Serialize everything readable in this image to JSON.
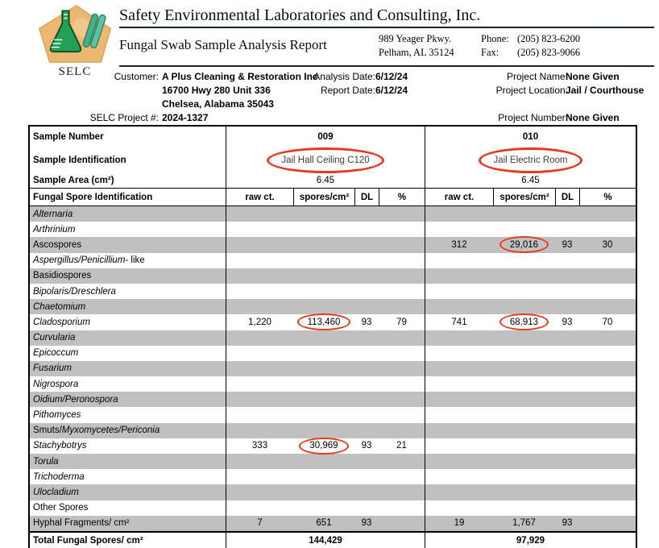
{
  "logo": {
    "text": "SELC"
  },
  "header": {
    "company": "Safety Environmental Laboratories and Consulting, Inc.",
    "report_title": "Fungal Swab Sample Analysis Report",
    "address_line1": "989 Yeager Pkwy.",
    "address_line2": "Pelham, AL 35124",
    "phone_label": "Phone:",
    "phone": "(205) 823-6200",
    "fax_label": "Fax:",
    "fax": "(205) 823-9066"
  },
  "info": {
    "customer_label": "Customer:",
    "customer_name": "A Plus Cleaning & Restoration Inc",
    "customer_addr1": "16700 Hwy 280 Unit 336",
    "customer_addr2": "Chelsea, Alabama 35043",
    "selc_project_label": "SELC Project #:",
    "selc_project": "2024-1327",
    "analysis_date_label": "Analysis Date:",
    "analysis_date": "6/12/24",
    "report_date_label": "Report Date:",
    "report_date": "6/12/24",
    "project_name_label": "Project Name:",
    "project_name": "None Given",
    "project_location_label": "Project Location:",
    "project_location": "Jail / Courthouse",
    "project_number_label": "Project Number:",
    "project_number": "None Given"
  },
  "table": {
    "sample_number_label": "Sample Number",
    "sample_id_label": "Sample Identification",
    "sample_area_label": "Sample Area (cm²)",
    "spore_id_label": "Fungal Spore Identification",
    "col_headers": [
      "raw ct.",
      "spores/cm²",
      "DL",
      "%"
    ],
    "samples": [
      {
        "number": "009",
        "identification": "Jail Hall Ceiling C120",
        "area": "6.45",
        "circled": true
      },
      {
        "number": "010",
        "identification": "Jail Electric Room",
        "area": "6.45",
        "circled": true
      }
    ],
    "rows": [
      {
        "name": [
          {
            "text": "Alternaria",
            "italic": true
          }
        ],
        "shaded": true,
        "s1": [
          "",
          "",
          "",
          ""
        ],
        "s2": [
          "",
          "",
          "",
          ""
        ]
      },
      {
        "name": [
          {
            "text": "Arthrinium",
            "italic": true
          }
        ],
        "shaded": false,
        "s1": [
          "",
          "",
          "",
          ""
        ],
        "s2": [
          "",
          "",
          "",
          ""
        ]
      },
      {
        "name": [
          {
            "text": "Ascospores",
            "italic": false
          }
        ],
        "shaded": true,
        "s1": [
          "",
          "",
          "",
          ""
        ],
        "s2": [
          "312",
          "29,016",
          "93",
          "30"
        ],
        "c2": true
      },
      {
        "name": [
          {
            "text": "Aspergillus/Penicillium",
            "italic": true
          },
          {
            "text": " - like",
            "italic": false
          }
        ],
        "shaded": false,
        "s1": [
          "",
          "",
          "",
          ""
        ],
        "s2": [
          "",
          "",
          "",
          ""
        ]
      },
      {
        "name": [
          {
            "text": "Basidiospores",
            "italic": false
          }
        ],
        "shaded": true,
        "s1": [
          "",
          "",
          "",
          ""
        ],
        "s2": [
          "",
          "",
          "",
          ""
        ]
      },
      {
        "name": [
          {
            "text": "Bipolaris/Dreschlera",
            "italic": true
          }
        ],
        "shaded": false,
        "s1": [
          "",
          "",
          "",
          ""
        ],
        "s2": [
          "",
          "",
          "",
          ""
        ]
      },
      {
        "name": [
          {
            "text": "Chaetomium",
            "italic": true
          }
        ],
        "shaded": true,
        "s1": [
          "",
          "",
          "",
          ""
        ],
        "s2": [
          "",
          "",
          "",
          ""
        ]
      },
      {
        "name": [
          {
            "text": "Cladosporium",
            "italic": true
          }
        ],
        "shaded": false,
        "s1": [
          "1,220",
          "113,460",
          "93",
          "79"
        ],
        "s2": [
          "741",
          "68,913",
          "93",
          "70"
        ],
        "c1": true,
        "c2": true
      },
      {
        "name": [
          {
            "text": "Curvularia",
            "italic": true
          }
        ],
        "shaded": true,
        "s1": [
          "",
          "",
          "",
          ""
        ],
        "s2": [
          "",
          "",
          "",
          ""
        ]
      },
      {
        "name": [
          {
            "text": "Epicoccum",
            "italic": true
          }
        ],
        "shaded": false,
        "s1": [
          "",
          "",
          "",
          ""
        ],
        "s2": [
          "",
          "",
          "",
          ""
        ]
      },
      {
        "name": [
          {
            "text": "Fusarium",
            "italic": true
          }
        ],
        "shaded": true,
        "s1": [
          "",
          "",
          "",
          ""
        ],
        "s2": [
          "",
          "",
          "",
          ""
        ]
      },
      {
        "name": [
          {
            "text": "Nigrospora",
            "italic": true
          }
        ],
        "shaded": false,
        "s1": [
          "",
          "",
          "",
          ""
        ],
        "s2": [
          "",
          "",
          "",
          ""
        ]
      },
      {
        "name": [
          {
            "text": "Oidium/Peronospora",
            "italic": true
          }
        ],
        "shaded": true,
        "s1": [
          "",
          "",
          "",
          ""
        ],
        "s2": [
          "",
          "",
          "",
          ""
        ]
      },
      {
        "name": [
          {
            "text": "Pithomyces",
            "italic": true
          }
        ],
        "shaded": false,
        "s1": [
          "",
          "",
          "",
          ""
        ],
        "s2": [
          "",
          "",
          "",
          ""
        ]
      },
      {
        "name": [
          {
            "text": "Smuts/",
            "italic": false
          },
          {
            "text": "Myxomycetes/Periconia",
            "italic": true
          }
        ],
        "shaded": true,
        "s1": [
          "",
          "",
          "",
          ""
        ],
        "s2": [
          "",
          "",
          "",
          ""
        ]
      },
      {
        "name": [
          {
            "text": "Stachybotrys",
            "italic": true
          }
        ],
        "shaded": false,
        "s1": [
          "333",
          "30,969",
          "93",
          "21"
        ],
        "s2": [
          "",
          "",
          "",
          ""
        ],
        "c1": true
      },
      {
        "name": [
          {
            "text": "Torula",
            "italic": true
          }
        ],
        "shaded": true,
        "s1": [
          "",
          "",
          "",
          ""
        ],
        "s2": [
          "",
          "",
          "",
          ""
        ]
      },
      {
        "name": [
          {
            "text": "Trichoderma",
            "italic": true
          }
        ],
        "shaded": false,
        "s1": [
          "",
          "",
          "",
          ""
        ],
        "s2": [
          "",
          "",
          "",
          ""
        ]
      },
      {
        "name": [
          {
            "text": "Ulocladium",
            "italic": true
          }
        ],
        "shaded": true,
        "s1": [
          "",
          "",
          "",
          ""
        ],
        "s2": [
          "",
          "",
          "",
          ""
        ]
      },
      {
        "name": [
          {
            "text": "Other Spores",
            "italic": false
          }
        ],
        "shaded": false,
        "s1": [
          "",
          "",
          "",
          ""
        ],
        "s2": [
          "",
          "",
          "",
          ""
        ]
      },
      {
        "name": [
          {
            "text": "Hyphal Fragments/ cm²",
            "italic": false
          }
        ],
        "shaded": true,
        "s1": [
          "7",
          "651",
          "93",
          ""
        ],
        "s2": [
          "19",
          "1,767",
          "93",
          ""
        ]
      }
    ],
    "total_label": "Total Fungal Spores/ cm²",
    "totals": [
      "144,429",
      "97,929"
    ]
  },
  "colors": {
    "annotation_red": "#e8391f",
    "row_shade": "#c0c0c0",
    "logo_gold": "#ecb76f",
    "logo_green": "#22a055",
    "rule_dark": "#14281c"
  }
}
